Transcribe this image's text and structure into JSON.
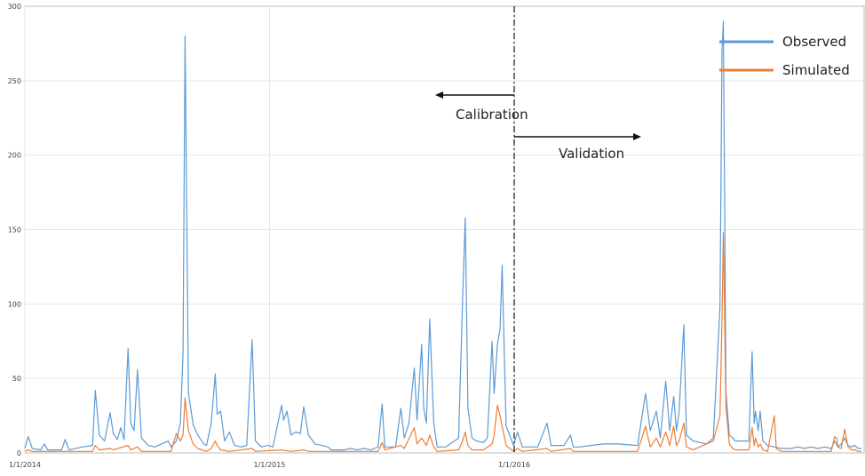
{
  "chart_data": {
    "type": "line",
    "title": "",
    "xlabel": "",
    "ylabel": "",
    "ylim": [
      0,
      300
    ],
    "xlim": [
      "2014-01-01",
      "2017-06-06"
    ],
    "grid": true,
    "legend_position": "top-right",
    "yticks": [
      "0",
      "50",
      "100",
      "150",
      "200",
      "250",
      "300"
    ],
    "xticks": [
      {
        "date": "2014-01-01",
        "label": "1/1/2014"
      },
      {
        "date": "2015-01-01",
        "label": "1/1/2015"
      },
      {
        "date": "2016-01-01",
        "label": "1/1/2016"
      }
    ],
    "series": [
      {
        "name": "Observed",
        "color": "#5b9bd5",
        "points": [
          [
            "2014-01-01",
            3
          ],
          [
            "2014-01-06",
            11
          ],
          [
            "2014-01-12",
            3
          ],
          [
            "2014-01-25",
            2
          ],
          [
            "2014-01-30",
            6
          ],
          [
            "2014-02-04",
            2
          ],
          [
            "2014-02-25",
            2
          ],
          [
            "2014-03-02",
            9
          ],
          [
            "2014-03-08",
            2
          ],
          [
            "2014-03-28",
            4
          ],
          [
            "2014-04-12",
            5
          ],
          [
            "2014-04-16",
            42
          ],
          [
            "2014-04-22",
            12
          ],
          [
            "2014-04-30",
            8
          ],
          [
            "2014-05-08",
            27
          ],
          [
            "2014-05-13",
            13
          ],
          [
            "2014-05-19",
            9
          ],
          [
            "2014-05-24",
            17
          ],
          [
            "2014-05-29",
            9
          ],
          [
            "2014-06-04",
            70
          ],
          [
            "2014-06-08",
            20
          ],
          [
            "2014-06-13",
            15
          ],
          [
            "2014-06-18",
            56
          ],
          [
            "2014-06-24",
            10
          ],
          [
            "2014-07-04",
            5
          ],
          [
            "2014-07-14",
            4
          ],
          [
            "2014-08-03",
            8
          ],
          [
            "2014-08-07",
            4
          ],
          [
            "2014-08-15",
            8
          ],
          [
            "2014-08-21",
            20
          ],
          [
            "2014-08-25",
            67
          ],
          [
            "2014-08-28",
            280
          ],
          [
            "2014-09-02",
            40
          ],
          [
            "2014-09-09",
            19
          ],
          [
            "2014-09-16",
            12
          ],
          [
            "2014-09-25",
            6
          ],
          [
            "2014-09-29",
            5
          ],
          [
            "2014-10-06",
            20
          ],
          [
            "2014-10-12",
            53
          ],
          [
            "2014-10-15",
            26
          ],
          [
            "2014-10-20",
            28
          ],
          [
            "2014-10-26",
            8
          ],
          [
            "2014-11-02",
            14
          ],
          [
            "2014-11-10",
            5
          ],
          [
            "2014-11-20",
            4
          ],
          [
            "2014-11-28",
            5
          ],
          [
            "2014-12-06",
            76
          ],
          [
            "2014-12-11",
            8
          ],
          [
            "2014-12-20",
            4
          ],
          [
            "2014-12-30",
            5
          ],
          [
            "2015-01-06",
            4
          ],
          [
            "2015-01-14",
            21
          ],
          [
            "2015-01-19",
            32
          ],
          [
            "2015-01-22",
            22
          ],
          [
            "2015-01-27",
            28
          ],
          [
            "2015-02-02",
            12
          ],
          [
            "2015-02-09",
            14
          ],
          [
            "2015-02-16",
            13
          ],
          [
            "2015-02-21",
            31
          ],
          [
            "2015-02-28",
            12
          ],
          [
            "2015-03-10",
            6
          ],
          [
            "2015-03-20",
            5
          ],
          [
            "2015-03-29",
            4
          ],
          [
            "2015-04-03",
            2
          ],
          [
            "2015-04-22",
            2
          ],
          [
            "2015-05-02",
            3
          ],
          [
            "2015-05-12",
            2
          ],
          [
            "2015-05-22",
            3
          ],
          [
            "2015-06-01",
            2
          ],
          [
            "2015-06-12",
            4
          ],
          [
            "2015-06-18",
            33
          ],
          [
            "2015-06-22",
            4
          ],
          [
            "2015-07-08",
            4
          ],
          [
            "2015-07-16",
            30
          ],
          [
            "2015-07-21",
            10
          ],
          [
            "2015-07-28",
            20
          ],
          [
            "2015-08-05",
            57
          ],
          [
            "2015-08-09",
            22
          ],
          [
            "2015-08-16",
            73
          ],
          [
            "2015-08-19",
            30
          ],
          [
            "2015-08-23",
            20
          ],
          [
            "2015-08-28",
            90
          ],
          [
            "2015-09-03",
            20
          ],
          [
            "2015-09-08",
            4
          ],
          [
            "2015-09-21",
            4
          ],
          [
            "2015-10-10",
            10
          ],
          [
            "2015-10-16",
            103
          ],
          [
            "2015-10-20",
            158
          ],
          [
            "2015-10-24",
            30
          ],
          [
            "2015-10-30",
            10
          ],
          [
            "2015-11-06",
            8
          ],
          [
            "2015-11-16",
            7
          ],
          [
            "2015-11-22",
            10
          ],
          [
            "2015-11-29",
            75
          ],
          [
            "2015-12-02",
            40
          ],
          [
            "2015-12-07",
            73
          ],
          [
            "2015-12-11",
            83
          ],
          [
            "2015-12-14",
            126
          ],
          [
            "2015-12-20",
            18
          ],
          [
            "2015-12-31",
            5
          ],
          [
            "2016-01-06",
            14
          ],
          [
            "2016-01-13",
            4
          ],
          [
            "2016-02-05",
            4
          ],
          [
            "2016-02-19",
            20
          ],
          [
            "2016-02-25",
            5
          ],
          [
            "2016-03-15",
            5
          ],
          [
            "2016-03-25",
            12
          ],
          [
            "2016-03-29",
            4
          ],
          [
            "2016-04-08",
            4
          ],
          [
            "2016-04-24",
            5
          ],
          [
            "2016-05-14",
            6
          ],
          [
            "2016-06-03",
            6
          ],
          [
            "2016-07-03",
            5
          ],
          [
            "2016-07-15",
            40
          ],
          [
            "2016-07-22",
            15
          ],
          [
            "2016-07-31",
            28
          ],
          [
            "2016-08-06",
            10
          ],
          [
            "2016-08-14",
            48
          ],
          [
            "2016-08-20",
            15
          ],
          [
            "2016-08-26",
            38
          ],
          [
            "2016-08-30",
            15
          ],
          [
            "2016-09-03",
            28
          ],
          [
            "2016-09-10",
            86
          ],
          [
            "2016-09-14",
            12
          ],
          [
            "2016-09-24",
            8
          ],
          [
            "2016-10-14",
            6
          ],
          [
            "2016-10-24",
            10
          ],
          [
            "2016-11-03",
            98
          ],
          [
            "2016-11-06",
            270
          ],
          [
            "2016-11-08",
            290
          ],
          [
            "2016-11-12",
            40
          ],
          [
            "2016-11-17",
            12
          ],
          [
            "2016-11-22",
            10
          ],
          [
            "2016-11-26",
            8
          ],
          [
            "2016-12-16",
            8
          ],
          [
            "2016-12-21",
            68
          ],
          [
            "2016-12-24",
            20
          ],
          [
            "2016-12-26",
            28
          ],
          [
            "2016-12-30",
            15
          ],
          [
            "2017-01-02",
            28
          ],
          [
            "2017-01-06",
            8
          ],
          [
            "2017-01-13",
            5
          ],
          [
            "2017-01-23",
            4
          ],
          [
            "2017-02-02",
            3
          ],
          [
            "2017-02-17",
            3
          ],
          [
            "2017-02-27",
            4
          ],
          [
            "2017-03-09",
            3
          ],
          [
            "2017-03-19",
            4
          ],
          [
            "2017-03-29",
            3
          ],
          [
            "2017-04-08",
            4
          ],
          [
            "2017-04-18",
            3
          ],
          [
            "2017-04-23",
            8
          ],
          [
            "2017-04-28",
            4
          ],
          [
            "2017-05-03",
            6
          ],
          [
            "2017-05-08",
            10
          ],
          [
            "2017-05-13",
            5
          ],
          [
            "2017-05-18",
            4
          ],
          [
            "2017-05-23",
            5
          ],
          [
            "2017-05-28",
            3
          ],
          [
            "2017-06-02",
            3
          ]
        ]
      },
      {
        "name": "Simulated",
        "color": "#ed7d31",
        "points": [
          [
            "2014-01-01",
            1
          ],
          [
            "2014-01-06",
            2
          ],
          [
            "2014-01-12",
            1
          ],
          [
            "2014-03-28",
            1
          ],
          [
            "2014-04-12",
            1
          ],
          [
            "2014-04-16",
            5
          ],
          [
            "2014-04-22",
            2
          ],
          [
            "2014-05-08",
            3
          ],
          [
            "2014-05-13",
            2
          ],
          [
            "2014-06-04",
            5
          ],
          [
            "2014-06-08",
            2
          ],
          [
            "2014-06-18",
            4
          ],
          [
            "2014-06-24",
            1
          ],
          [
            "2014-08-07",
            1
          ],
          [
            "2014-08-15",
            13
          ],
          [
            "2014-08-21",
            8
          ],
          [
            "2014-08-25",
            12
          ],
          [
            "2014-08-28",
            37
          ],
          [
            "2014-09-02",
            15
          ],
          [
            "2014-09-09",
            6
          ],
          [
            "2014-09-16",
            3
          ],
          [
            "2014-09-29",
            1
          ],
          [
            "2014-10-06",
            3
          ],
          [
            "2014-10-12",
            8
          ],
          [
            "2014-10-15",
            5
          ],
          [
            "2014-10-20",
            2
          ],
          [
            "2014-11-02",
            1
          ],
          [
            "2014-12-06",
            3
          ],
          [
            "2014-12-11",
            1
          ],
          [
            "2015-01-19",
            2
          ],
          [
            "2015-02-02",
            1
          ],
          [
            "2015-02-21",
            2
          ],
          [
            "2015-02-28",
            1
          ],
          [
            "2015-04-22",
            1
          ],
          [
            "2015-06-12",
            1
          ],
          [
            "2015-06-18",
            7
          ],
          [
            "2015-06-22",
            2
          ],
          [
            "2015-07-16",
            5
          ],
          [
            "2015-07-21",
            3
          ],
          [
            "2015-08-05",
            17
          ],
          [
            "2015-08-09",
            6
          ],
          [
            "2015-08-16",
            10
          ],
          [
            "2015-08-23",
            5
          ],
          [
            "2015-08-28",
            12
          ],
          [
            "2015-09-03",
            4
          ],
          [
            "2015-09-08",
            1
          ],
          [
            "2015-10-10",
            2
          ],
          [
            "2015-10-16",
            8
          ],
          [
            "2015-10-20",
            14
          ],
          [
            "2015-10-24",
            5
          ],
          [
            "2015-10-30",
            2
          ],
          [
            "2015-11-16",
            2
          ],
          [
            "2015-11-29",
            6
          ],
          [
            "2015-12-02",
            12
          ],
          [
            "2015-12-07",
            32
          ],
          [
            "2015-12-11",
            25
          ],
          [
            "2015-12-14",
            18
          ],
          [
            "2015-12-20",
            5
          ],
          [
            "2015-12-31",
            1
          ],
          [
            "2016-01-06",
            3
          ],
          [
            "2016-01-13",
            1
          ],
          [
            "2016-02-19",
            3
          ],
          [
            "2016-02-25",
            1
          ],
          [
            "2016-03-25",
            3
          ],
          [
            "2016-03-29",
            1
          ],
          [
            "2016-07-03",
            1
          ],
          [
            "2016-07-15",
            18
          ],
          [
            "2016-07-22",
            4
          ],
          [
            "2016-07-31",
            10
          ],
          [
            "2016-08-06",
            4
          ],
          [
            "2016-08-14",
            14
          ],
          [
            "2016-08-20",
            5
          ],
          [
            "2016-08-26",
            18
          ],
          [
            "2016-08-30",
            5
          ],
          [
            "2016-09-03",
            8
          ],
          [
            "2016-09-10",
            20
          ],
          [
            "2016-09-14",
            4
          ],
          [
            "2016-09-24",
            2
          ],
          [
            "2016-10-24",
            8
          ],
          [
            "2016-11-03",
            25
          ],
          [
            "2016-11-06",
            90
          ],
          [
            "2016-11-08",
            148
          ],
          [
            "2016-11-12",
            30
          ],
          [
            "2016-11-17",
            6
          ],
          [
            "2016-11-22",
            3
          ],
          [
            "2016-11-26",
            2
          ],
          [
            "2016-12-16",
            2
          ],
          [
            "2016-12-21",
            17
          ],
          [
            "2016-12-24",
            5
          ],
          [
            "2016-12-26",
            10
          ],
          [
            "2016-12-30",
            4
          ],
          [
            "2017-01-02",
            6
          ],
          [
            "2017-01-06",
            2
          ],
          [
            "2017-01-13",
            1
          ],
          [
            "2017-01-23",
            25
          ],
          [
            "2017-01-26",
            3
          ],
          [
            "2017-02-02",
            1
          ],
          [
            "2017-04-18",
            1
          ],
          [
            "2017-04-23",
            11
          ],
          [
            "2017-04-26",
            10
          ],
          [
            "2017-04-28",
            4
          ],
          [
            "2017-05-03",
            3
          ],
          [
            "2017-05-08",
            16
          ],
          [
            "2017-05-13",
            4
          ],
          [
            "2017-05-18",
            2
          ],
          [
            "2017-05-23",
            2
          ],
          [
            "2017-05-28",
            1
          ],
          [
            "2017-06-02",
            1
          ]
        ]
      }
    ],
    "annotations": {
      "divider_date": "2016-01-01",
      "calibration_label": "Calibration",
      "validation_label": "Validation"
    }
  }
}
